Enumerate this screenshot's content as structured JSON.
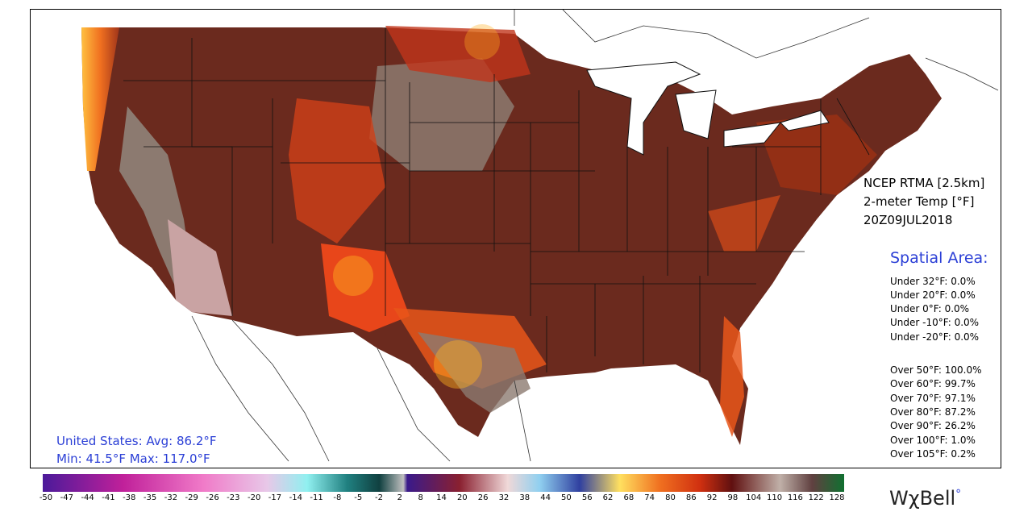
{
  "info": {
    "model": "NCEP RTMA [2.5km]",
    "field": "2-meter Temp [°F]",
    "valid_time": "20Z09JUL2018"
  },
  "spatial_area": {
    "title": "Spatial Area:",
    "under": [
      {
        "label": "Under 32°F: 0.0%"
      },
      {
        "label": "Under 20°F: 0.0%"
      },
      {
        "label": "Under 0°F: 0.0%"
      },
      {
        "label": "Under -10°F: 0.0%"
      },
      {
        "label": "Under -20°F: 0.0%"
      }
    ],
    "over": [
      {
        "label": "Over 50°F: 100.0%"
      },
      {
        "label": "Over 60°F: 99.7%"
      },
      {
        "label": "Over 70°F: 97.1%"
      },
      {
        "label": "Over 80°F: 87.2%"
      },
      {
        "label": "Over 90°F: 26.2%"
      },
      {
        "label": "Over 100°F: 1.0%"
      },
      {
        "label": "Over 105°F: 0.2%"
      }
    ]
  },
  "summary": {
    "line1": "United States: Avg:  86.2°F",
    "line2": "Min:  41.5°F Max: 117.0°F"
  },
  "colorbar": {
    "ticks": [
      "-50",
      "-47",
      "-44",
      "-41",
      "-38",
      "-35",
      "-32",
      "-29",
      "-26",
      "-23",
      "-20",
      "-17",
      "-14",
      "-11",
      "-8",
      "-5",
      "-2",
      "2",
      "8",
      "14",
      "20",
      "26",
      "32",
      "38",
      "44",
      "50",
      "56",
      "62",
      "68",
      "74",
      "80",
      "86",
      "92",
      "98",
      "104",
      "110",
      "116",
      "122",
      "128"
    ]
  },
  "brand": {
    "text": "WχBell"
  },
  "colors": {
    "warm_base": "#6b2a1e",
    "warm_mid": "#8a2a12",
    "hot": "#e8461a",
    "hottest": "#ffb020",
    "cool_brown": "#8c7a70",
    "desert_pink": "#c9a3a3",
    "accent_blue": "#2b3fd6"
  }
}
